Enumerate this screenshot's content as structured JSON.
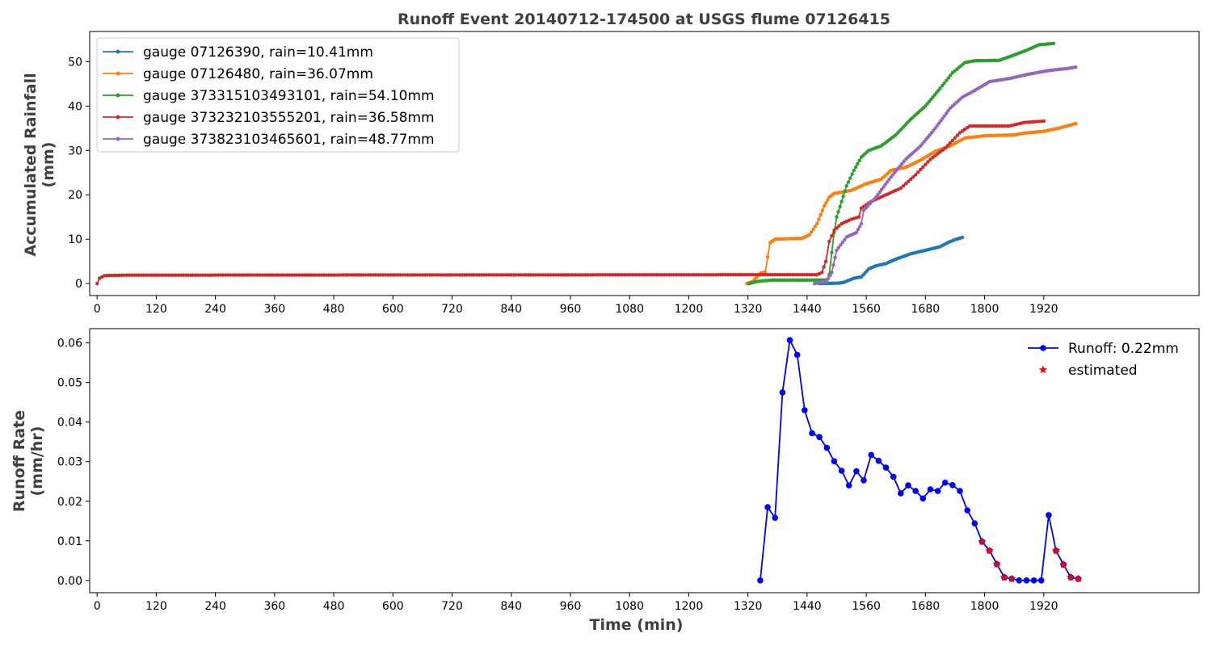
{
  "title": "Runoff Event 20140712-174500 at USGS flume 07126415",
  "chart_data": [
    {
      "type": "line",
      "ylabel": [
        "Accumulated Rainfall",
        "(mm)"
      ],
      "xlabel": "",
      "xlim": [
        -15,
        2235
      ],
      "ylim": [
        -2.7,
        56.8
      ],
      "xticks": [
        0,
        120,
        240,
        360,
        480,
        600,
        720,
        840,
        960,
        1080,
        1200,
        1320,
        1440,
        1560,
        1680,
        1800,
        1920
      ],
      "yticks": [
        0,
        10,
        20,
        30,
        40,
        50
      ],
      "legend": "top-left",
      "series": [
        {
          "name": "gauge 07126390, rain=10.41mm",
          "color": "#1f77b4",
          "points": [
            [
              1465,
              0
            ],
            [
              1505,
              0.1
            ],
            [
              1515,
              0.3
            ],
            [
              1535,
              1.2
            ],
            [
              1550,
              1.5
            ],
            [
              1565,
              3.3
            ],
            [
              1580,
              4.0
            ],
            [
              1600,
              4.5
            ],
            [
              1620,
              5.5
            ],
            [
              1650,
              6.7
            ],
            [
              1680,
              7.5
            ],
            [
              1710,
              8.3
            ],
            [
              1725,
              9.2
            ],
            [
              1740,
              9.9
            ],
            [
              1755,
              10.4
            ]
          ]
        },
        {
          "name": "gauge 07126480, rain=36.07mm",
          "color": "#ff7f0e",
          "points": [
            [
              1318,
              0
            ],
            [
              1330,
              0.5
            ],
            [
              1345,
              2.3
            ],
            [
              1355,
              2.6
            ],
            [
              1360,
              6.0
            ],
            [
              1365,
              9.2
            ],
            [
              1375,
              10.0
            ],
            [
              1430,
              10.2
            ],
            [
              1445,
              11.0
            ],
            [
              1460,
              13.5
            ],
            [
              1475,
              17.5
            ],
            [
              1485,
              19.5
            ],
            [
              1495,
              20.3
            ],
            [
              1530,
              21.0
            ],
            [
              1560,
              22.5
            ],
            [
              1590,
              23.5
            ],
            [
              1610,
              25.5
            ],
            [
              1640,
              26.2
            ],
            [
              1670,
              27.8
            ],
            [
              1700,
              29.8
            ],
            [
              1730,
              31.0
            ],
            [
              1760,
              32.8
            ],
            [
              1800,
              33.3
            ],
            [
              1860,
              33.5
            ],
            [
              1880,
              33.9
            ],
            [
              1920,
              34.3
            ],
            [
              1950,
              35.0
            ],
            [
              1985,
              36.07
            ]
          ]
        },
        {
          "name": "gauge 373315103493101, rain=54.10mm",
          "color": "#2ca02c",
          "points": [
            [
              1322,
              0
            ],
            [
              1340,
              0.5
            ],
            [
              1370,
              0.8
            ],
            [
              1480,
              0.8
            ],
            [
              1485,
              2.0
            ],
            [
              1490,
              7.0
            ],
            [
              1495,
              11.5
            ],
            [
              1500,
              15.0
            ],
            [
              1510,
              18.5
            ],
            [
              1520,
              22.0
            ],
            [
              1535,
              25.5
            ],
            [
              1550,
              28.5
            ],
            [
              1565,
              30.0
            ],
            [
              1590,
              31.0
            ],
            [
              1620,
              33.5
            ],
            [
              1650,
              37.0
            ],
            [
              1680,
              40.0
            ],
            [
              1710,
              44.0
            ],
            [
              1735,
              47.5
            ],
            [
              1760,
              49.8
            ],
            [
              1780,
              50.2
            ],
            [
              1830,
              50.3
            ],
            [
              1860,
              51.5
            ],
            [
              1890,
              52.8
            ],
            [
              1910,
              53.8
            ],
            [
              1940,
              54.1
            ]
          ]
        },
        {
          "name": "gauge 373232103555201, rain=36.58mm",
          "color": "#d62728",
          "points": [
            [
              0,
              0
            ],
            [
              5,
              1.2
            ],
            [
              15,
              1.8
            ],
            [
              60,
              1.9
            ],
            [
              1460,
              2.0
            ],
            [
              1470,
              2.5
            ],
            [
              1478,
              5.0
            ],
            [
              1485,
              9.5
            ],
            [
              1495,
              12.0
            ],
            [
              1510,
              13.5
            ],
            [
              1530,
              14.5
            ],
            [
              1545,
              15.0
            ],
            [
              1550,
              17.0
            ],
            [
              1570,
              18.5
            ],
            [
              1600,
              20.0
            ],
            [
              1630,
              21.5
            ],
            [
              1660,
              24.5
            ],
            [
              1690,
              28.0
            ],
            [
              1720,
              30.5
            ],
            [
              1750,
              34.0
            ],
            [
              1770,
              35.5
            ],
            [
              1850,
              35.5
            ],
            [
              1880,
              36.3
            ],
            [
              1920,
              36.6
            ]
          ]
        },
        {
          "name": "gauge 373823103465601, rain=48.77mm",
          "color": "#9467bd",
          "points": [
            [
              1455,
              0
            ],
            [
              1480,
              0.5
            ],
            [
              1490,
              2.5
            ],
            [
              1500,
              7.5
            ],
            [
              1520,
              10.5
            ],
            [
              1540,
              11.5
            ],
            [
              1550,
              13.5
            ],
            [
              1555,
              16.5
            ],
            [
              1580,
              19.5
            ],
            [
              1610,
              24.0
            ],
            [
              1640,
              28.0
            ],
            [
              1670,
              31.0
            ],
            [
              1700,
              35.0
            ],
            [
              1730,
              39.5
            ],
            [
              1755,
              42.0
            ],
            [
              1780,
              43.5
            ],
            [
              1810,
              45.5
            ],
            [
              1850,
              46.2
            ],
            [
              1890,
              47.2
            ],
            [
              1930,
              48.0
            ],
            [
              1970,
              48.5
            ],
            [
              1985,
              48.77
            ]
          ]
        }
      ]
    },
    {
      "type": "line",
      "ylabel": [
        "Runoff Rate",
        "(mm/hr)"
      ],
      "xlabel": "Time (min)",
      "xlim": [
        -15,
        2235
      ],
      "ylim": [
        -0.0031,
        0.0636
      ],
      "xticks": [
        0,
        120,
        240,
        360,
        480,
        600,
        720,
        840,
        960,
        1080,
        1200,
        1320,
        1440,
        1560,
        1680,
        1800,
        1920
      ],
      "yticks": [
        0.0,
        0.01,
        0.02,
        0.03,
        0.04,
        0.05,
        0.06
      ],
      "legend": "top-right",
      "series": [
        {
          "name": "Runoff: 0.22mm",
          "color": "#0000ff",
          "x": [
            1345,
            1360,
            1375,
            1390,
            1405,
            1420,
            1435,
            1450,
            1465,
            1480,
            1495,
            1510,
            1525,
            1540,
            1555,
            1570,
            1585,
            1600,
            1615,
            1630,
            1645,
            1660,
            1675,
            1690,
            1705,
            1720,
            1735,
            1750,
            1765,
            1780,
            1795,
            1810,
            1825,
            1840,
            1855,
            1870,
            1885,
            1900,
            1915,
            1930,
            1945,
            1960,
            1975,
            1990
          ],
          "y": [
            0.0,
            0.0185,
            0.0158,
            0.0475,
            0.0607,
            0.057,
            0.043,
            0.0372,
            0.0362,
            0.0335,
            0.0301,
            0.0277,
            0.024,
            0.0276,
            0.0253,
            0.0317,
            0.0302,
            0.0285,
            0.0262,
            0.022,
            0.024,
            0.0226,
            0.0207,
            0.023,
            0.0226,
            0.0247,
            0.0241,
            0.0226,
            0.0177,
            0.0144,
            0.0098,
            0.0075,
            0.0041,
            0.0008,
            0.0004,
            0.0,
            0.0,
            0.0,
            0.0,
            0.0165,
            0.0075,
            0.004,
            0.0008,
            0.0004
          ]
        },
        {
          "name": "estimated",
          "color": "#ff0000",
          "x": [
            1795,
            1810,
            1825,
            1840,
            1855,
            1945,
            1960,
            1975,
            1990
          ],
          "y": [
            0.0098,
            0.0075,
            0.0041,
            0.0008,
            0.0004,
            0.0075,
            0.004,
            0.0008,
            0.0004
          ]
        }
      ]
    }
  ]
}
